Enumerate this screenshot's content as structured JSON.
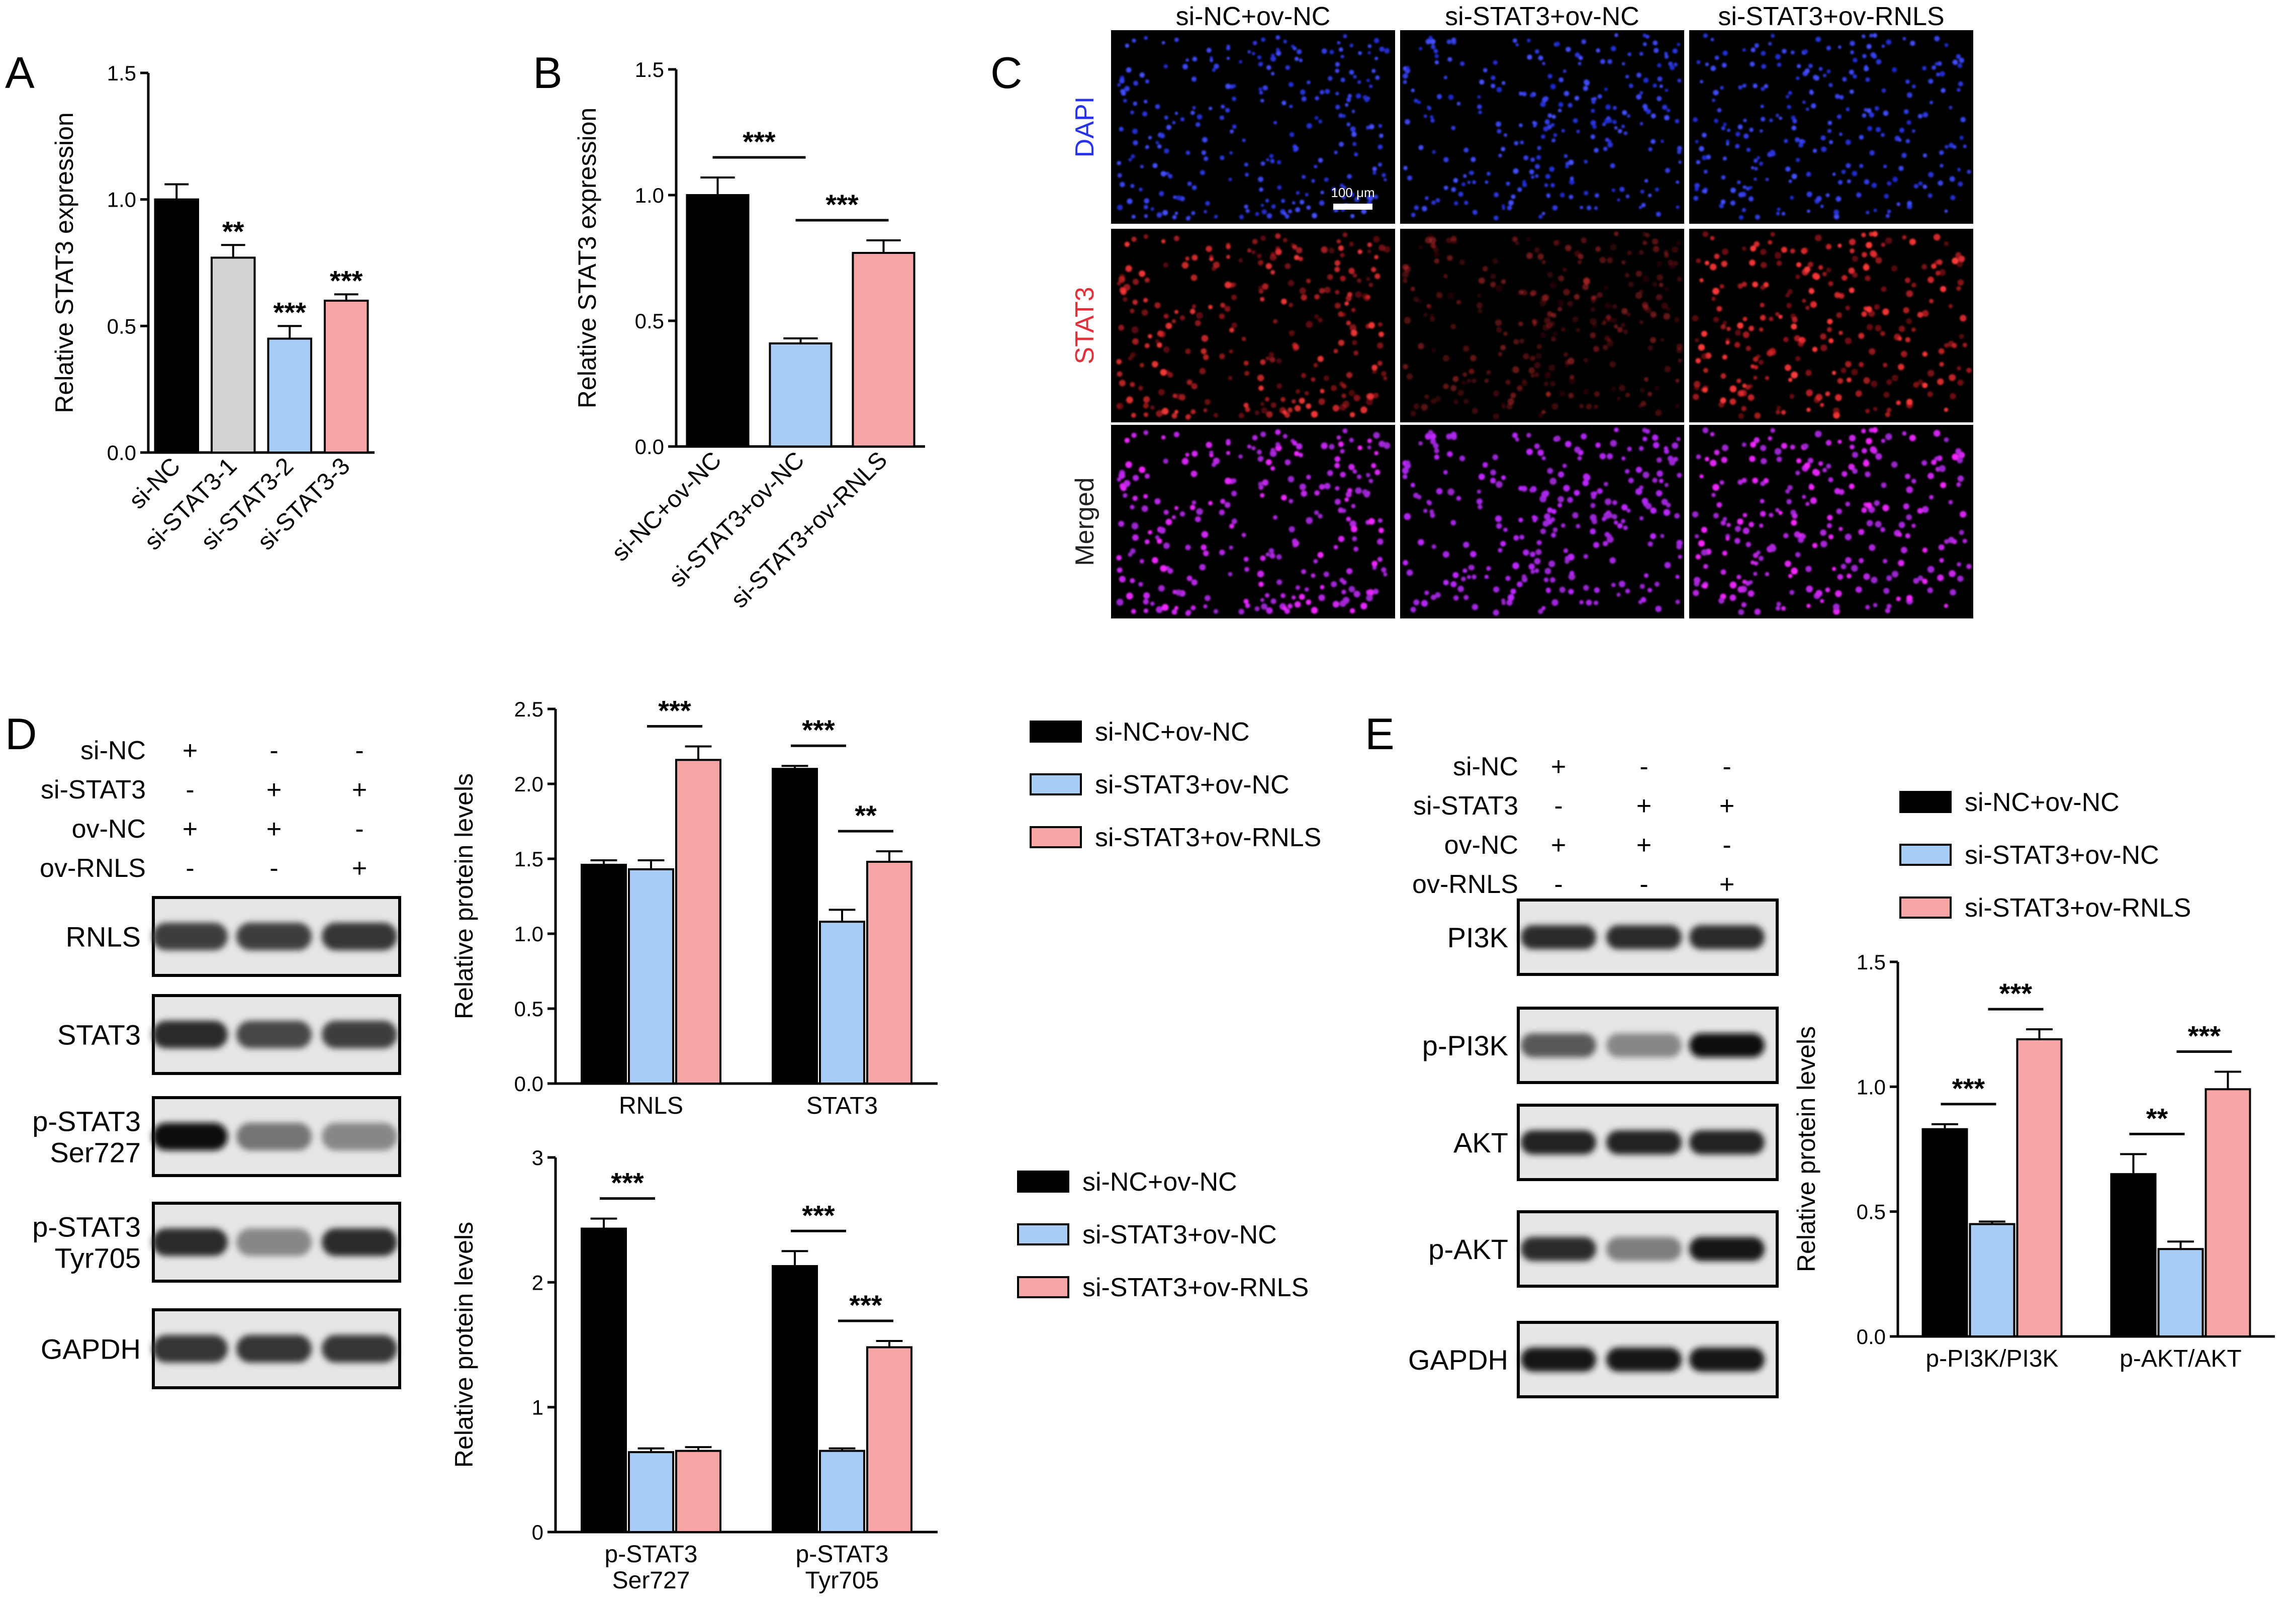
{
  "colors": {
    "black": "#000000",
    "grey": "#d3d3d3",
    "blue": "#a8cdf5",
    "pink": "#f7a5a5",
    "dapi": "#2633e8",
    "stat3": "#e0303a"
  },
  "panel_letters": [
    "A",
    "B",
    "C",
    "D",
    "E"
  ],
  "chart_data": [
    {
      "id": "A",
      "type": "bar",
      "ylabel": "Relative STAT3 expression",
      "ylim": [
        0,
        1.5
      ],
      "yticks": [
        "0.0",
        "0.5",
        "1.0",
        "1.5"
      ],
      "categories": [
        "si-NC",
        "si-STAT3-1",
        "si-STAT3-2",
        "si-STAT3-3"
      ],
      "values": [
        1.0,
        0.77,
        0.45,
        0.6
      ],
      "errors": [
        0.06,
        0.05,
        0.05,
        0.025
      ],
      "annotations": [
        "",
        "**",
        "***",
        "***"
      ],
      "colors": [
        "black",
        "grey",
        "blue",
        "pink"
      ]
    },
    {
      "id": "B",
      "type": "bar",
      "ylabel": "Relative STAT3 expression",
      "ylim": [
        0,
        1.5
      ],
      "yticks": [
        "0.0",
        "0.5",
        "1.0",
        "1.5"
      ],
      "categories": [
        "si-NC+ov-NC",
        "si-STAT3+ov-NC",
        "si-STAT3+ov-RNLS"
      ],
      "values": [
        1.0,
        0.41,
        0.77
      ],
      "errors": [
        0.07,
        0.02,
        0.05
      ],
      "comparisons": [
        {
          "from": 0,
          "to": 1,
          "label": "***"
        },
        {
          "from": 1,
          "to": 2,
          "label": "***"
        }
      ],
      "colors": [
        "black",
        "blue",
        "pink"
      ]
    },
    {
      "id": "D1",
      "type": "bar",
      "ylabel": "Relative protein levels",
      "ylim": [
        0,
        2.5
      ],
      "yticks": [
        "0.0",
        "0.5",
        "1.0",
        "1.5",
        "2.0",
        "2.5"
      ],
      "categories": [
        "RNLS",
        "STAT3"
      ],
      "series": [
        {
          "name": "si-NC+ov-NC",
          "values": [
            1.46,
            2.1
          ],
          "errors": [
            0.03,
            0.02
          ]
        },
        {
          "name": "si-STAT3+ov-NC",
          "values": [
            1.43,
            1.08
          ],
          "errors": [
            0.06,
            0.08
          ]
        },
        {
          "name": "si-STAT3+ov-RNLS",
          "values": [
            2.16,
            1.48
          ],
          "errors": [
            0.09,
            0.07
          ]
        }
      ],
      "comparisons": [
        {
          "group": 0,
          "from": 1,
          "to": 2,
          "label": "***"
        },
        {
          "group": 1,
          "from": 0,
          "to": 1,
          "label": "***"
        },
        {
          "group": 1,
          "from": 1,
          "to": 2,
          "label": "**"
        }
      ],
      "legend_position": "right"
    },
    {
      "id": "D2",
      "type": "bar",
      "ylabel": "Relative protein levels",
      "ylim": [
        0,
        3
      ],
      "yticks": [
        "0",
        "1",
        "2",
        "3"
      ],
      "categories": [
        [
          "p-STAT3",
          "Ser727"
        ],
        [
          "p-STAT3",
          "Tyr705"
        ]
      ],
      "series": [
        {
          "name": "si-NC+ov-NC",
          "values": [
            2.43,
            2.13
          ],
          "errors": [
            0.08,
            0.12
          ]
        },
        {
          "name": "si-STAT3+ov-NC",
          "values": [
            0.64,
            0.65
          ],
          "errors": [
            0.03,
            0.02
          ]
        },
        {
          "name": "si-STAT3+ov-RNLS",
          "values": [
            0.65,
            1.48
          ],
          "errors": [
            0.03,
            0.05
          ]
        }
      ],
      "comparisons": [
        {
          "group": 0,
          "from": 0,
          "to": 1,
          "label": "***"
        },
        {
          "group": 1,
          "from": 0,
          "to": 1,
          "label": "***"
        },
        {
          "group": 1,
          "from": 1,
          "to": 2,
          "label": "***"
        }
      ],
      "legend_position": "right"
    },
    {
      "id": "E",
      "type": "bar",
      "ylabel": "Relative protein levels",
      "ylim": [
        0,
        1.5
      ],
      "yticks": [
        "0.0",
        "0.5",
        "1.0",
        "1.5"
      ],
      "categories": [
        "p-PI3K/PI3K",
        "p-AKT/AKT"
      ],
      "series": [
        {
          "name": "si-NC+ov-NC",
          "values": [
            0.83,
            0.65
          ],
          "errors": [
            0.02,
            0.08
          ]
        },
        {
          "name": "si-STAT3+ov-NC",
          "values": [
            0.45,
            0.35
          ],
          "errors": [
            0.01,
            0.03
          ]
        },
        {
          "name": "si-STAT3+ov-RNLS",
          "values": [
            1.19,
            0.99
          ],
          "errors": [
            0.04,
            0.07
          ]
        }
      ],
      "comparisons": [
        {
          "group": 0,
          "from": 0,
          "to": 1,
          "label": "***"
        },
        {
          "group": 0,
          "from": 1,
          "to": 2,
          "label": "***"
        },
        {
          "group": 1,
          "from": 0,
          "to": 1,
          "label": "**"
        },
        {
          "group": 1,
          "from": 1,
          "to": 2,
          "label": "***"
        }
      ],
      "legend_position": "top"
    }
  ],
  "microscopy": {
    "columns": [
      "si-NC+ov-NC",
      "si-STAT3+ov-NC",
      "si-STAT3+ov-RNLS"
    ],
    "rows": [
      "DAPI",
      "STAT3",
      "Merged"
    ],
    "scale_bar": "100 μm",
    "density": [
      1.0,
      0.45,
      1.15
    ]
  },
  "blot_D": {
    "treatments": [
      {
        "label": "si-NC",
        "marks": [
          "+",
          "-",
          "-"
        ]
      },
      {
        "label": "si-STAT3",
        "marks": [
          "-",
          "+",
          "+"
        ]
      },
      {
        "label": "ov-NC",
        "marks": [
          "+",
          "+",
          "-"
        ]
      },
      {
        "label": "ov-RNLS",
        "marks": [
          "-",
          "-",
          "+"
        ]
      }
    ],
    "bands": [
      {
        "label": [
          "RNLS"
        ],
        "intensity": [
          0.75,
          0.75,
          0.8
        ]
      },
      {
        "label": [
          "STAT3"
        ],
        "intensity": [
          0.85,
          0.7,
          0.75
        ]
      },
      {
        "label": [
          "p-STAT3",
          "Ser727"
        ],
        "intensity": [
          1.0,
          0.45,
          0.35
        ]
      },
      {
        "label": [
          "p-STAT3",
          "Tyr705"
        ],
        "intensity": [
          0.85,
          0.35,
          0.85
        ]
      },
      {
        "label": [
          "GAPDH"
        ],
        "intensity": [
          0.8,
          0.8,
          0.8
        ]
      }
    ]
  },
  "blot_E": {
    "treatments": [
      {
        "label": "si-NC",
        "marks": [
          "+",
          "-",
          "-"
        ]
      },
      {
        "label": "si-STAT3",
        "marks": [
          "-",
          "+",
          "+"
        ]
      },
      {
        "label": "ov-NC",
        "marks": [
          "+",
          "+",
          "-"
        ]
      },
      {
        "label": "ov-RNLS",
        "marks": [
          "-",
          "-",
          "+"
        ]
      }
    ],
    "bands": [
      {
        "label": [
          "PI3K"
        ],
        "intensity": [
          0.85,
          0.85,
          0.85
        ]
      },
      {
        "label": [
          "p-PI3K"
        ],
        "intensity": [
          0.6,
          0.35,
          1.0
        ]
      },
      {
        "label": [
          "AKT"
        ],
        "intensity": [
          0.9,
          0.9,
          0.9
        ]
      },
      {
        "label": [
          "p-AKT"
        ],
        "intensity": [
          0.85,
          0.4,
          0.95
        ]
      },
      {
        "label": [
          "GAPDH"
        ],
        "intensity": [
          0.95,
          0.95,
          0.95
        ]
      }
    ]
  }
}
